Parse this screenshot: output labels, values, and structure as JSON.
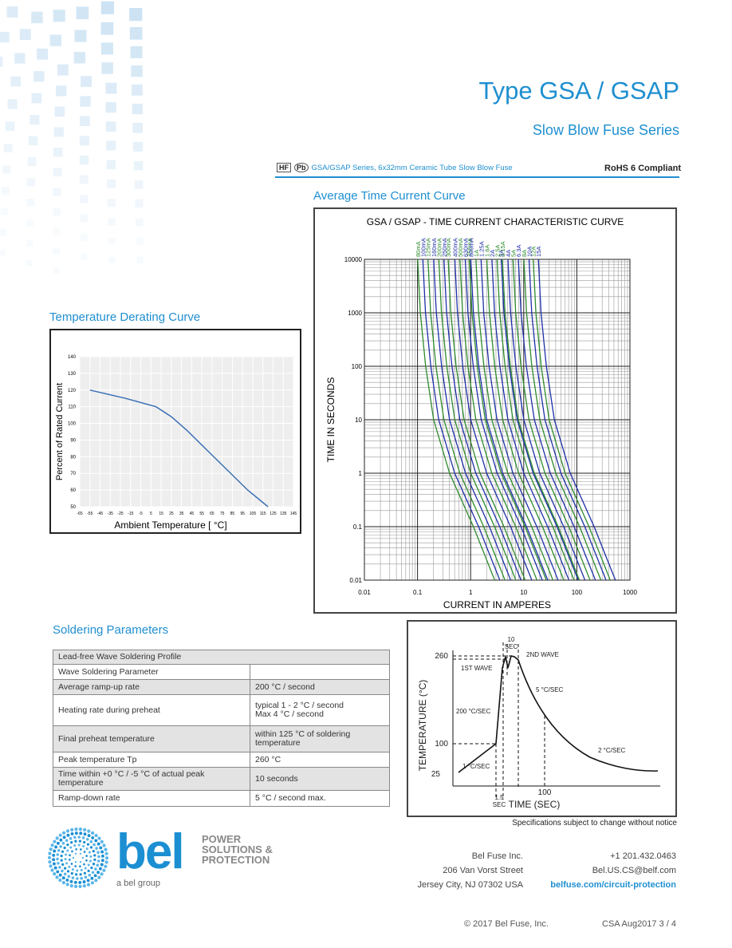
{
  "header": {
    "title": "Type GSA / GSAP",
    "subtitle": "Slow Blow Fuse Series",
    "badges": [
      "HF",
      "Pb"
    ],
    "description": "GSA/GSAP Series, 6x32mm Ceramic Tube Slow Blow Fuse",
    "compliance": "RoHS 6 Compliant"
  },
  "sections": {
    "time_current": "Average Time Current Curve",
    "derating": "Temperature Derating Curve",
    "soldering": "Soldering Parameters"
  },
  "chart_data": [
    {
      "type": "line",
      "title": "GSA / GSAP - TIME CURRENT CHARACTERISTIC CURVE",
      "x_label": "CURRENT IN AMPERES",
      "y_label": "TIME IN SECONDS",
      "log_x": true,
      "log_y": true,
      "grid": true,
      "xlim": [
        0.01,
        1000
      ],
      "xticks": [
        0.01,
        0.1,
        1,
        10,
        100,
        1000
      ],
      "ylim": [
        0.01,
        10000
      ],
      "yticks": [
        0.01,
        0.1,
        1,
        10,
        100,
        1000,
        10000
      ],
      "series": [
        {
          "name": "80mA",
          "amps": 0.08,
          "color": "#2e8b2e"
        },
        {
          "name": "100mA",
          "amps": 0.1,
          "color": "#1f2fa8"
        },
        {
          "name": "125mA",
          "amps": 0.125,
          "color": "#2e8b2e"
        },
        {
          "name": "160mA",
          "amps": 0.16,
          "color": "#1f2fa8"
        },
        {
          "name": "200mA",
          "amps": 0.2,
          "color": "#2e8b2e"
        },
        {
          "name": "250mA",
          "amps": 0.25,
          "color": "#1f2fa8"
        },
        {
          "name": "300mA",
          "amps": 0.3,
          "color": "#2e8b2e"
        },
        {
          "name": "400mA",
          "amps": 0.4,
          "color": "#1f2fa8"
        },
        {
          "name": "500mA",
          "amps": 0.5,
          "color": "#2e8b2e"
        },
        {
          "name": "630mA",
          "amps": 0.63,
          "color": "#1f2fa8"
        },
        {
          "name": "750mA",
          "amps": 0.75,
          "color": "#2e8b2e"
        },
        {
          "name": "800mA",
          "amps": 0.8,
          "color": "#1f2fa8"
        },
        {
          "name": "1A",
          "amps": 1,
          "color": "#2e8b2e"
        },
        {
          "name": "1.25A",
          "amps": 1.25,
          "color": "#1f2fa8"
        },
        {
          "name": "1.6A",
          "amps": 1.6,
          "color": "#2e8b2e"
        },
        {
          "name": "2A",
          "amps": 2,
          "color": "#1f2fa8"
        },
        {
          "name": "2.5A",
          "amps": 2.5,
          "color": "#2e8b2e"
        },
        {
          "name": "3A",
          "amps": 3,
          "color": "#1f2fa8"
        },
        {
          "name": "3.15A",
          "amps": 3.15,
          "color": "#2e8b2e"
        },
        {
          "name": "4A",
          "amps": 4,
          "color": "#1f2fa8"
        },
        {
          "name": "5A",
          "amps": 5,
          "color": "#2e8b2e"
        },
        {
          "name": "6.3A",
          "amps": 6.3,
          "color": "#1f2fa8"
        },
        {
          "name": "8A",
          "amps": 8,
          "color": "#2e8b2e"
        },
        {
          "name": "10A",
          "amps": 10,
          "color": "#1f2fa8"
        },
        {
          "name": "12A",
          "amps": 12,
          "color": "#2e8b2e"
        },
        {
          "name": "15A",
          "amps": 15,
          "color": "#1f2fa8"
        }
      ]
    },
    {
      "type": "line",
      "x_label": "Ambient Temperature [ °C]",
      "y_label": "Percent of Rated Current",
      "grid": true,
      "color": "#3a6fb5",
      "x": [
        -55,
        -20,
        10,
        25,
        40,
        60,
        80,
        100,
        120
      ],
      "values": [
        120,
        115,
        110,
        104,
        96,
        84,
        72,
        60,
        50
      ],
      "xlim": [
        -65,
        145
      ],
      "xticks": [
        -65,
        -55,
        -45,
        -35,
        -25,
        -15,
        -5,
        5,
        15,
        25,
        35,
        45,
        55,
        65,
        75,
        85,
        95,
        105,
        115,
        125,
        135,
        145
      ],
      "ylim": [
        50,
        140
      ],
      "yticks": [
        50,
        60,
        70,
        80,
        90,
        100,
        110,
        120,
        130,
        140
      ]
    }
  ],
  "table": {
    "title": "Lead-free Wave Soldering Profile",
    "rows": [
      [
        "Wave Soldering Parameter",
        ""
      ],
      [
        "Average ramp-up rate",
        "200 °C / second"
      ],
      [
        "Heating rate during preheat",
        "typical 1 - 2 °C / second\nMax 4 °C / second"
      ],
      [
        "Final preheat temperature",
        "within 125 °C of soldering\ntemperature"
      ],
      [
        "Peak temperature Tp",
        "260 °C"
      ],
      [
        "Time within +0 °C / -5 °C of actual peak\ntemperature",
        "10 seconds"
      ],
      [
        "Ramp-down rate",
        "5 °C / second max."
      ]
    ]
  },
  "profile": {
    "y_label": "TEMPERATURE (°C)",
    "x_label": "TIME (SEC)",
    "y_marks": [
      "260",
      "100",
      "25"
    ],
    "x_mark": "100",
    "peak_time": "10",
    "peak_unit": "SEC",
    "second_wave": "2ND WAVE",
    "first_wave": "1ST WAVE",
    "ramp_down": "5 °C/SEC",
    "ramp_up": "200 °C/SEC",
    "cooling": "2 °C/SEC",
    "preheat": "1 °C/SEC",
    "gap_time": "1.5",
    "gap_unit": "SEC"
  },
  "notice": "Specifications subject to change without notice",
  "logo": {
    "brand": "bel",
    "tagline": [
      "POWER",
      "SOLUTIONS &",
      "PROTECTION"
    ],
    "group": "a bel group"
  },
  "contact": {
    "address": [
      "Bel Fuse Inc.",
      "206 Van Vorst Street",
      "Jersey City, NJ 07302 USA"
    ],
    "phone": "+1 201.432.0463",
    "email": "Bel.US.CS@belf.com",
    "web": "belfuse.com/circuit-protection"
  },
  "footer": {
    "copyright": "© 2017 Bel Fuse, Inc.",
    "doc": "CSA Aug2017 3 / 4"
  }
}
